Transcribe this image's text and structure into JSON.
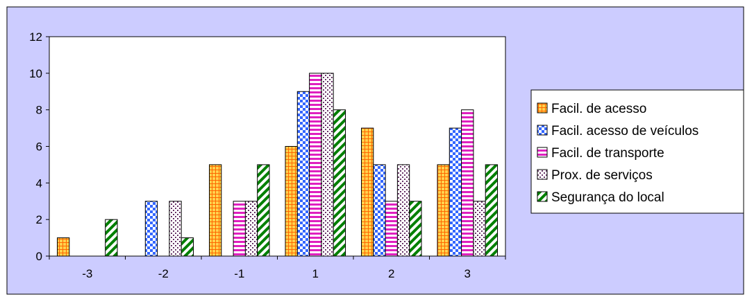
{
  "chart_data": {
    "type": "bar",
    "title": "",
    "xlabel": "",
    "ylabel": "",
    "categories": [
      "-3",
      "-2",
      "-1",
      "1",
      "2",
      "3"
    ],
    "ylim": [
      0,
      12
    ],
    "yticks": [
      "0",
      "2",
      "4",
      "6",
      "8",
      "10",
      "12"
    ],
    "grid": false,
    "legend_position": "right",
    "series": [
      {
        "name": "Facil. de acesso",
        "values": [
          1,
          0,
          5,
          6,
          7,
          5
        ],
        "pattern": "grid",
        "color": "#ffd24d",
        "pattern_color": "#ff6600"
      },
      {
        "name": "Facil. acesso de veículos",
        "values": [
          0,
          3,
          0,
          9,
          5,
          7
        ],
        "pattern": "checker",
        "color": "#ffffff",
        "pattern_color": "#3366ff"
      },
      {
        "name": "Facil. de transporte",
        "values": [
          0,
          0,
          3,
          10,
          3,
          8
        ],
        "pattern": "hstripes",
        "color": "#ffffff",
        "pattern_color": "#e020c0"
      },
      {
        "name": "Prox. de serviços",
        "values": [
          0,
          3,
          3,
          10,
          5,
          3
        ],
        "pattern": "dots",
        "color": "#ffffff",
        "pattern_color": "#663366"
      },
      {
        "name": "Segurança do local",
        "values": [
          2,
          1,
          5,
          8,
          3,
          5
        ],
        "pattern": "diagonal",
        "color": "#ffffff",
        "pattern_color": "#008000"
      }
    ],
    "colors": {
      "chart_background": "#ccccff",
      "plot_background": "#ffffff",
      "legend_background": "#ffffff",
      "border": "#000000"
    }
  }
}
